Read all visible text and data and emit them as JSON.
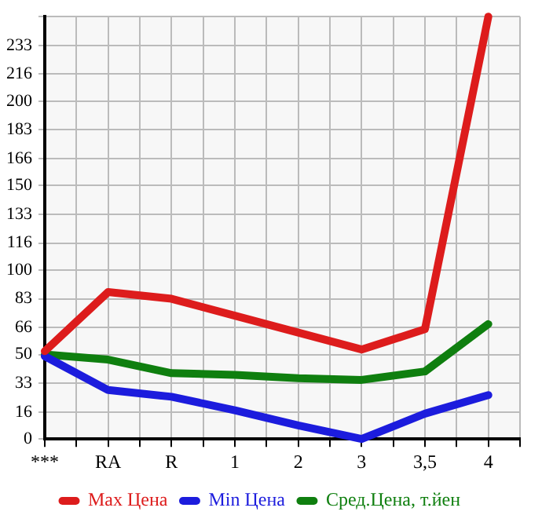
{
  "chart_data": {
    "type": "line",
    "categories": [
      "***",
      "RA",
      "R",
      "1",
      "2",
      "3",
      "3,5",
      "4"
    ],
    "series": [
      {
        "name": "Max Цена",
        "color": "#dd1c1c",
        "values": [
          52,
          87,
          83,
          73,
          63,
          53,
          65,
          250
        ]
      },
      {
        "name": "Min Цена",
        "color": "#1c1cdd",
        "values": [
          49,
          29,
          25,
          17,
          8,
          0,
          15,
          26
        ]
      },
      {
        "name": "Сред.Цена, т.йен",
        "color": "#0f7f0f",
        "values": [
          50,
          47,
          39,
          38,
          36,
          35,
          40,
          68
        ]
      }
    ],
    "ylim": [
      0,
      250
    ],
    "yticks": [
      0,
      16,
      33,
      50,
      66,
      83,
      100,
      116,
      133,
      150,
      166,
      183,
      200,
      216,
      233,
      {
        "value": 250,
        "label": null
      }
    ],
    "grid": true,
    "legend": "bottom",
    "marker": "none",
    "line_style": "solid"
  }
}
